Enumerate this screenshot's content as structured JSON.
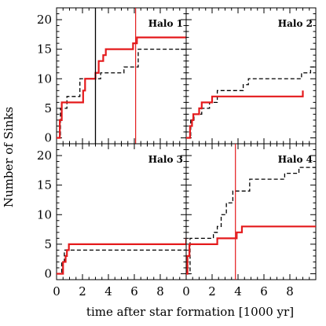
{
  "chart_data": {
    "type": "line",
    "xlabel": "time after star formation [1000 yr]",
    "ylabel": "Number of Sinks",
    "xlim": [
      0,
      10
    ],
    "ylim": [
      -1,
      22
    ],
    "xticks": [
      0,
      2,
      4,
      6,
      8
    ],
    "yticks": [
      0,
      5,
      10,
      15,
      20
    ],
    "layout": "2x2 grid, shared axes",
    "colors": {
      "red": "#e41a1c",
      "black": "#000000"
    },
    "panels": [
      {
        "label": "Halo 1",
        "red": {
          "x": [
            0,
            0.25,
            0.4,
            1.95,
            2.05,
            2.2,
            2.6,
            3.0,
            3.25,
            3.6,
            3.8,
            4.0,
            5.9,
            6.2,
            10
          ],
          "y": [
            0,
            3,
            6,
            6,
            8,
            10,
            10,
            11,
            13,
            14,
            15,
            15,
            16,
            17,
            17
          ]
        },
        "black": {
          "x": [
            0,
            0.3,
            0.8,
            1.8,
            3.0,
            3.4,
            5.2,
            6.3,
            7.1,
            10
          ],
          "y": [
            0,
            5,
            7,
            10,
            10,
            11,
            12,
            15,
            15,
            15
          ]
        },
        "vlines": [
          {
            "x": 3.0,
            "color": "black"
          },
          {
            "x": 6.1,
            "color": "red"
          }
        ]
      },
      {
        "label": "Halo 2",
        "red": {
          "x": [
            0,
            0.3,
            0.45,
            0.55,
            0.7,
            1.0,
            1.2,
            1.6,
            2.0,
            8.7,
            9.0
          ],
          "y": [
            0,
            2,
            3,
            4,
            4,
            5,
            6,
            6,
            7,
            7,
            8
          ]
        },
        "black": {
          "x": [
            0,
            0.35,
            0.6,
            1.2,
            1.8,
            2.4,
            4.4,
            4.8,
            5.3,
            8.3,
            8.9,
            9.6,
            10
          ],
          "y": [
            0,
            3,
            4,
            5,
            6,
            8,
            9,
            10,
            10,
            10,
            11,
            12,
            12
          ]
        },
        "vlines": []
      },
      {
        "label": "Halo 3",
        "red": {
          "x": [
            0,
            0.5,
            0.6,
            0.7,
            0.8,
            0.95,
            8.9,
            10
          ],
          "y": [
            0,
            2,
            2,
            3,
            4,
            5,
            5,
            6
          ]
        },
        "black": {
          "x": [
            0,
            0.4,
            0.6,
            0.9,
            10
          ],
          "y": [
            0,
            2,
            4,
            4,
            4
          ]
        },
        "vlines": []
      },
      {
        "label": "Halo 4",
        "red": {
          "x": [
            0,
            0.1,
            0.25,
            0.5,
            1.3,
            2.4,
            3.5,
            3.9,
            4.3,
            10
          ],
          "y": [
            0,
            3,
            5,
            5,
            5,
            6,
            6,
            7,
            8,
            8
          ]
        },
        "black": {
          "x": [
            0,
            0.3,
            1.8,
            2.1,
            2.4,
            2.7,
            3.1,
            3.6,
            4.3,
            4.9,
            6.8,
            7.6,
            8.7,
            10
          ],
          "y": [
            0,
            6,
            6,
            7,
            8,
            10,
            12,
            14,
            14,
            16,
            16,
            17,
            18,
            18
          ]
        },
        "vlines": [
          {
            "x": 3.8,
            "color": "red"
          }
        ]
      }
    ]
  }
}
